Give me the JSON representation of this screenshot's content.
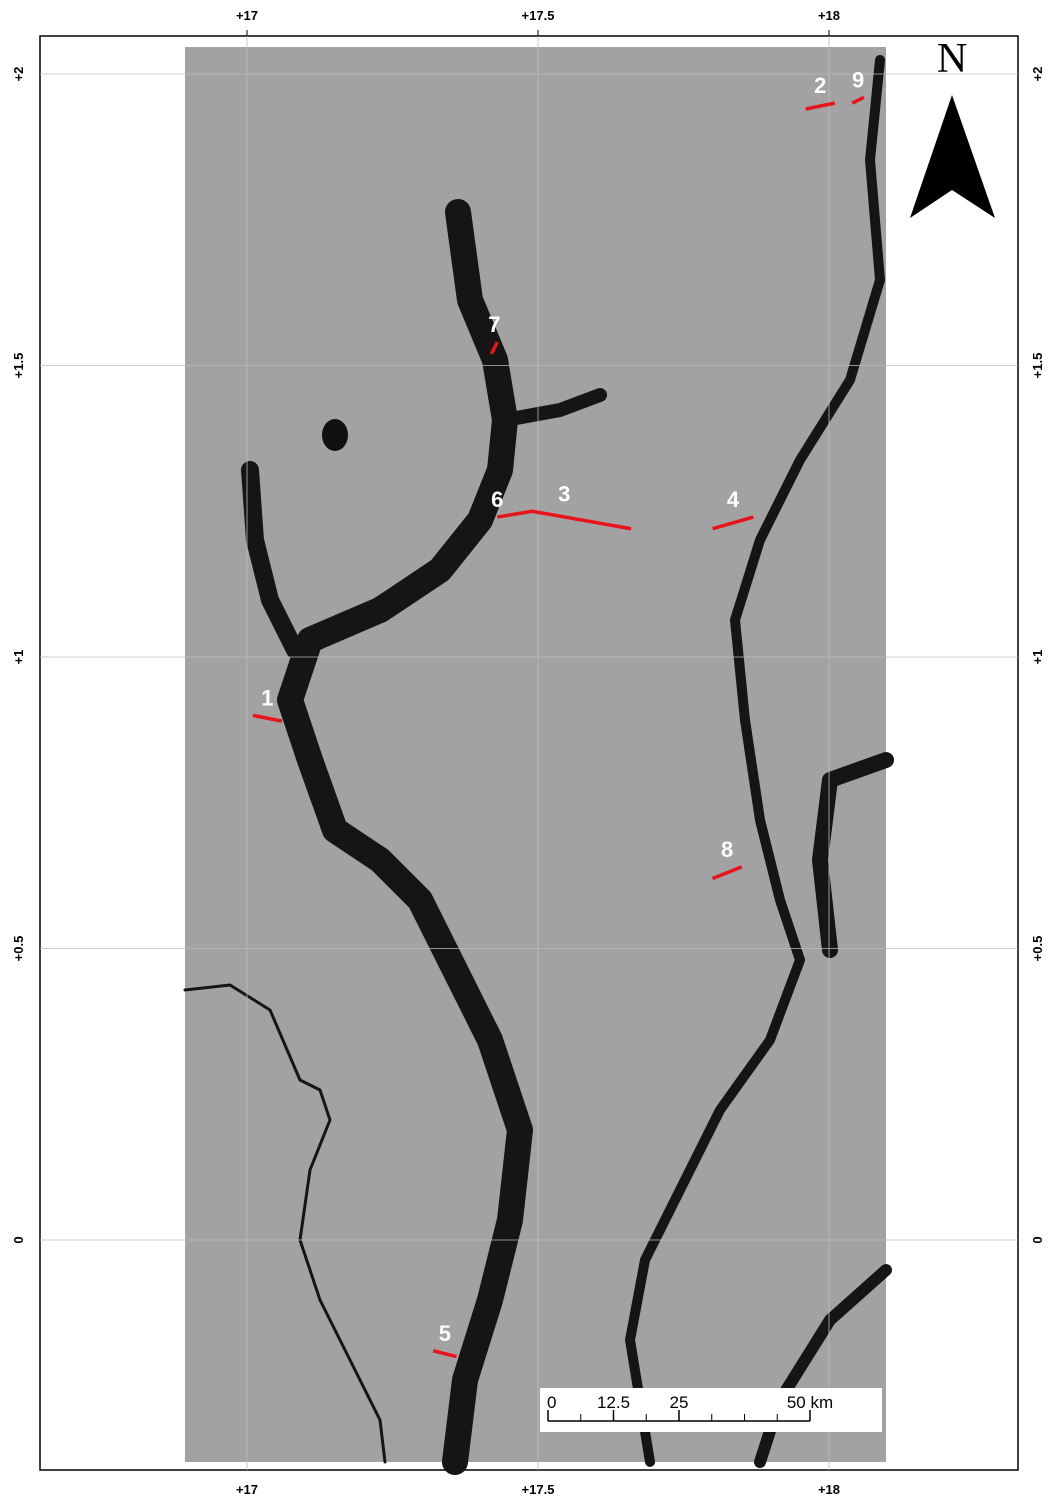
{
  "map": {
    "lon_ticks": [
      {
        "value": 17,
        "label": "+17"
      },
      {
        "value": 17.5,
        "label": "+17.5"
      },
      {
        "value": 18,
        "label": "+18"
      }
    ],
    "lat_ticks": [
      {
        "value": 2,
        "label": "+2"
      },
      {
        "value": 1.5,
        "label": "+1.5"
      },
      {
        "value": 1,
        "label": "+1"
      },
      {
        "value": 0.5,
        "label": "+0.5"
      },
      0
    ],
    "north": "N",
    "sites": [
      {
        "label": "1",
        "lon": [
          17.01,
          17.06
        ],
        "lat": [
          0.9,
          0.89
        ]
      },
      {
        "label": "2",
        "lon": [
          17.96,
          18.01
        ],
        "lat": [
          1.94,
          1.95
        ]
      },
      {
        "label": "3",
        "lon": [
          17.43,
          17.49,
          17.66
        ],
        "lat": [
          1.24,
          1.25,
          1.22
        ]
      },
      {
        "label": "4",
        "lon": [
          17.8,
          17.87
        ],
        "lat": [
          1.22,
          1.24
        ]
      },
      {
        "label": "5",
        "lon": [
          17.32,
          17.36
        ],
        "lat": [
          -0.19,
          -0.2
        ]
      },
      {
        "label": "6",
        "lon": [
          17.43
        ],
        "lat": [
          1.24
        ]
      },
      {
        "label": "7",
        "lon": [
          17.42,
          17.43
        ],
        "lat": [
          1.52,
          1.54
        ]
      },
      {
        "label": "8",
        "lon": [
          17.8,
          17.85
        ],
        "lat": [
          0.62,
          0.64
        ]
      },
      {
        "label": "9",
        "lon": [
          18.04,
          18.06
        ],
        "lat": [
          1.95,
          1.96
        ]
      }
    ],
    "scale_bar": [
      {
        "value": 0,
        "label": "0"
      },
      {
        "value": 12.5,
        "label": "12.5"
      },
      {
        "value": 25,
        "label": "25"
      },
      {
        "value": 50,
        "label": "50 km"
      }
    ]
  }
}
